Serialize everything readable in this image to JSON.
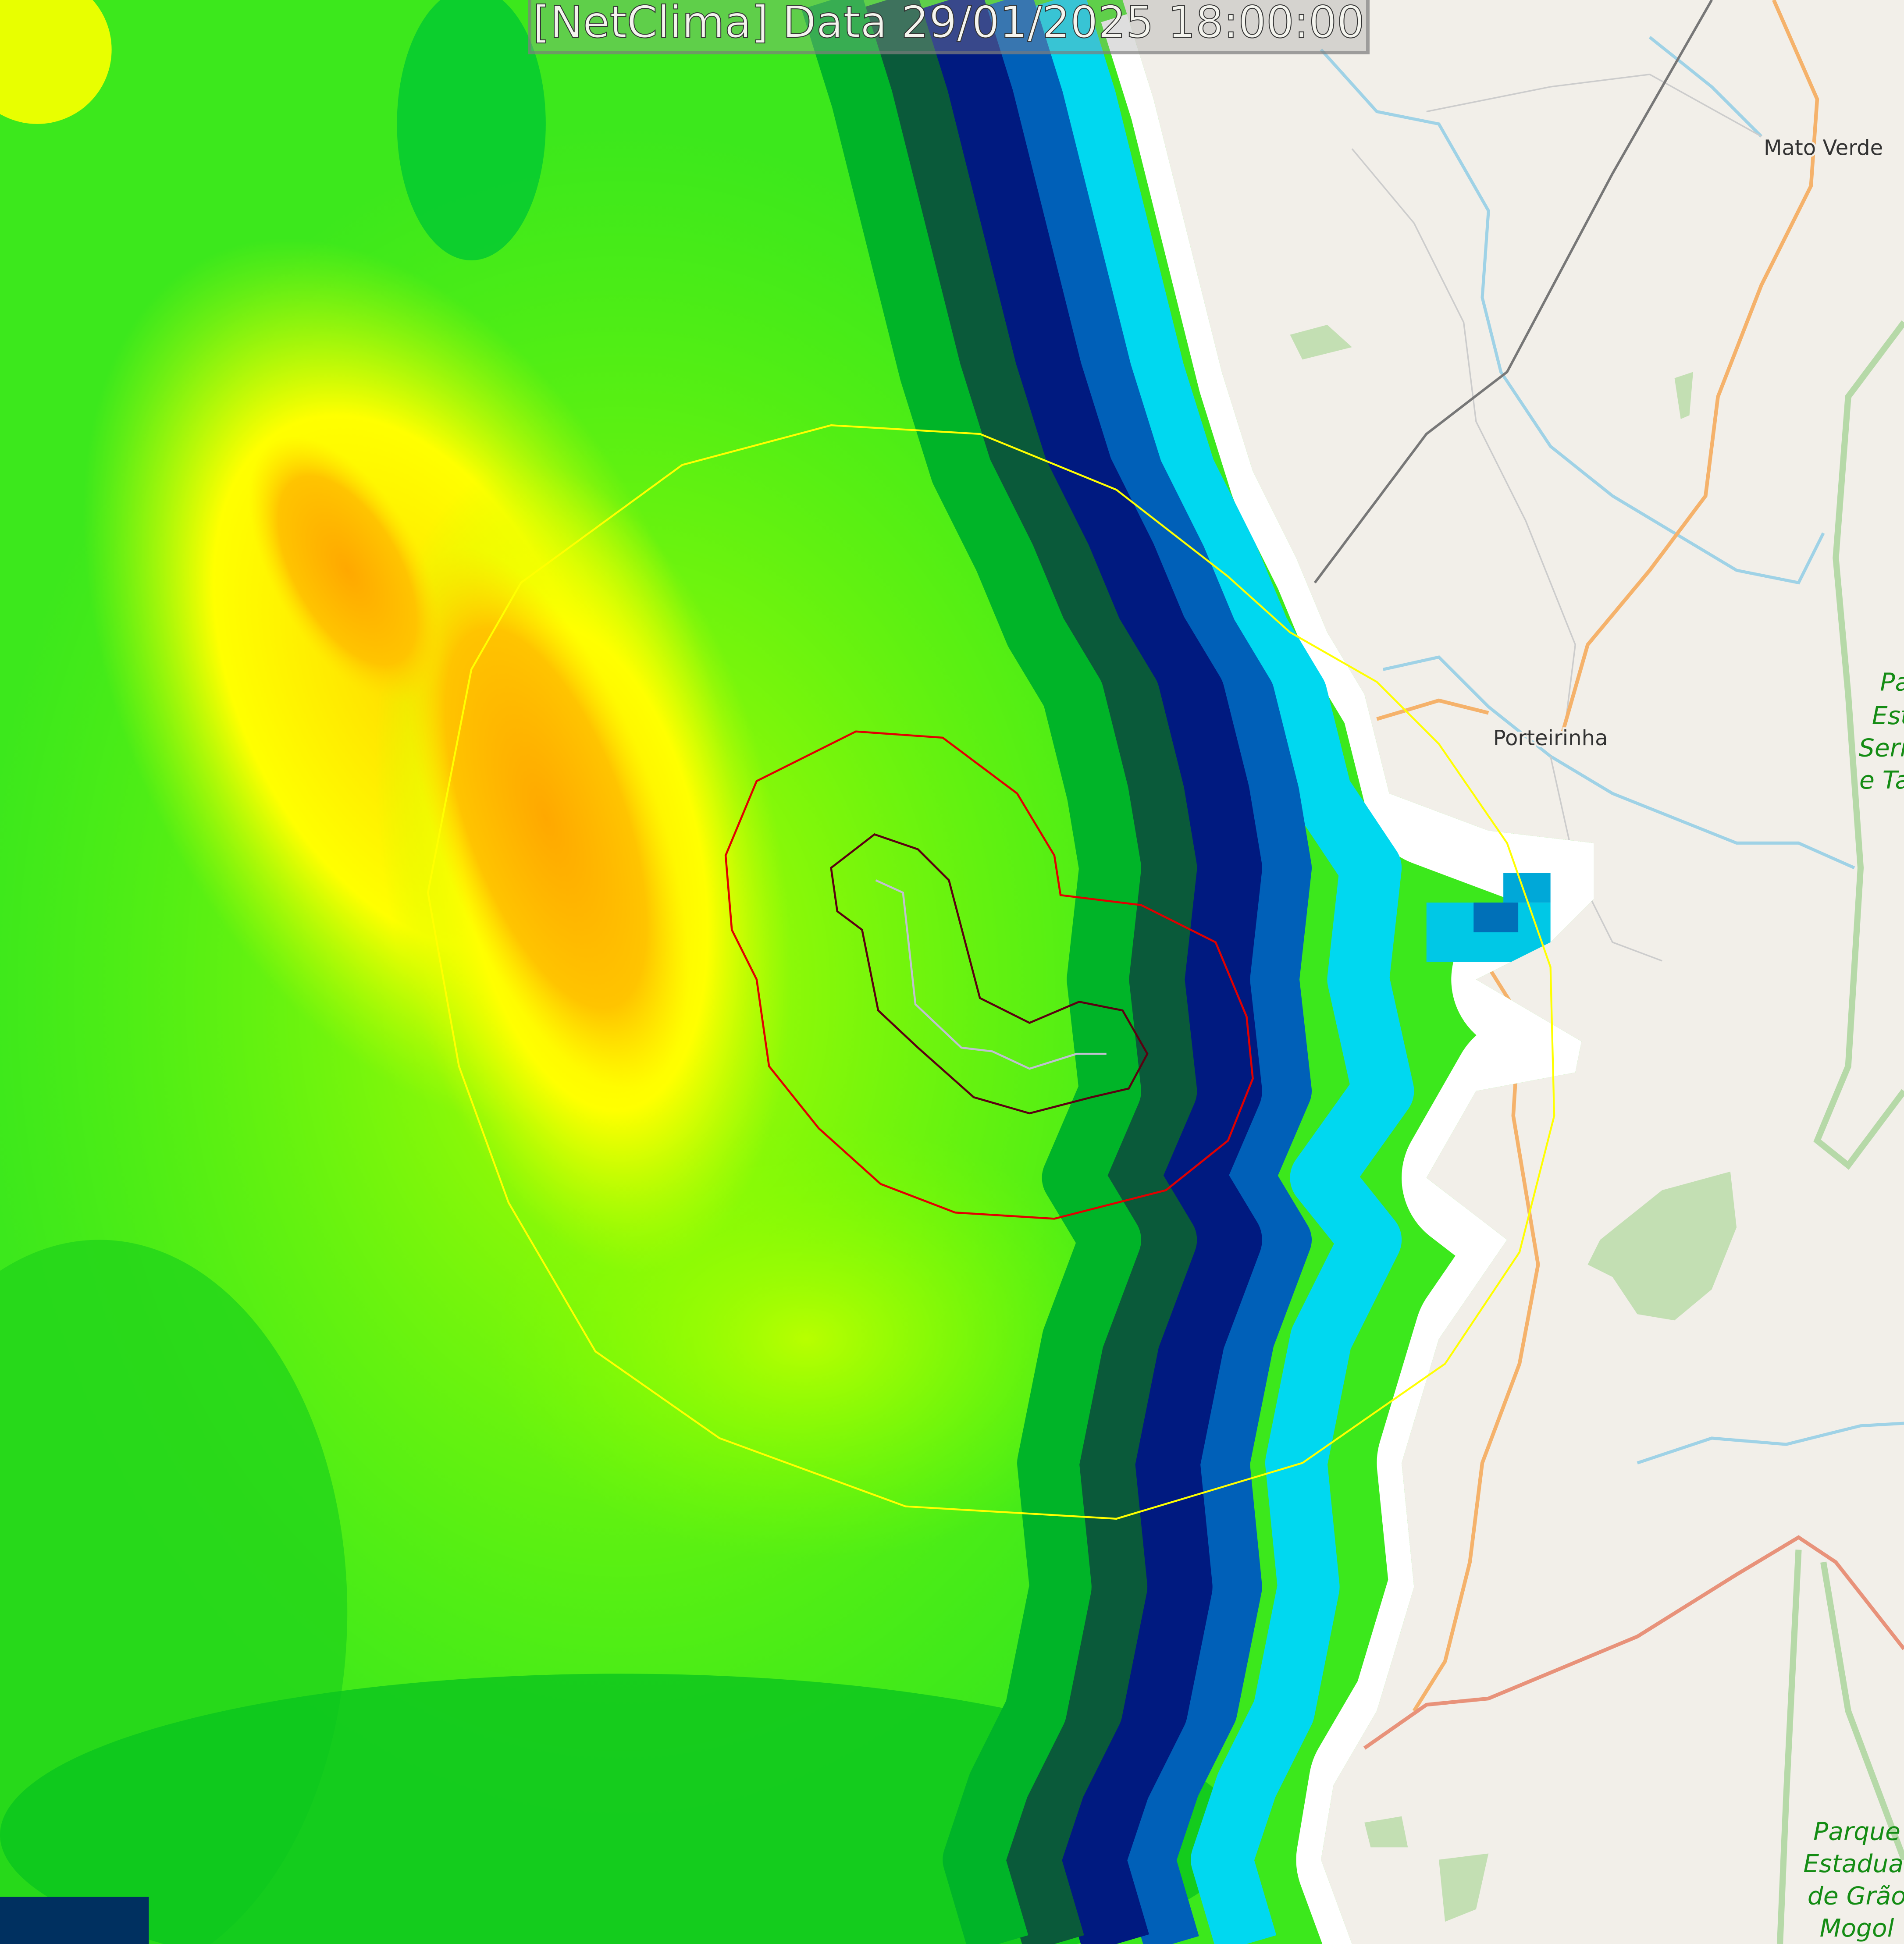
{
  "title": "[NetClima] Data 29/01/2025 18:00:00",
  "places": {
    "mato_verde": "Mato Verde",
    "porteirinha": "Porteirinha"
  },
  "parks": {
    "serra_lines": [
      "Pa",
      "Est",
      "Serr",
      "e Ta"
    ],
    "grao_mogol_lines": [
      "Parque",
      "Estadual",
      "de Grão",
      "Mogol"
    ]
  },
  "colors": {
    "map_background": "#f2efe9",
    "radar_green": "#33e01a",
    "radar_yellow": "#ffff00",
    "radar_orange": "#ffb000",
    "radar_dark_blue": "#000a6e",
    "radar_cyan": "#00e5ff",
    "contour_outer": "#ffff00",
    "contour_middle": "#e00000",
    "contour_inner": "#5a0010",
    "river": "#9fd2e6",
    "road": "#f5b26b",
    "park": "#c3dfb3"
  }
}
